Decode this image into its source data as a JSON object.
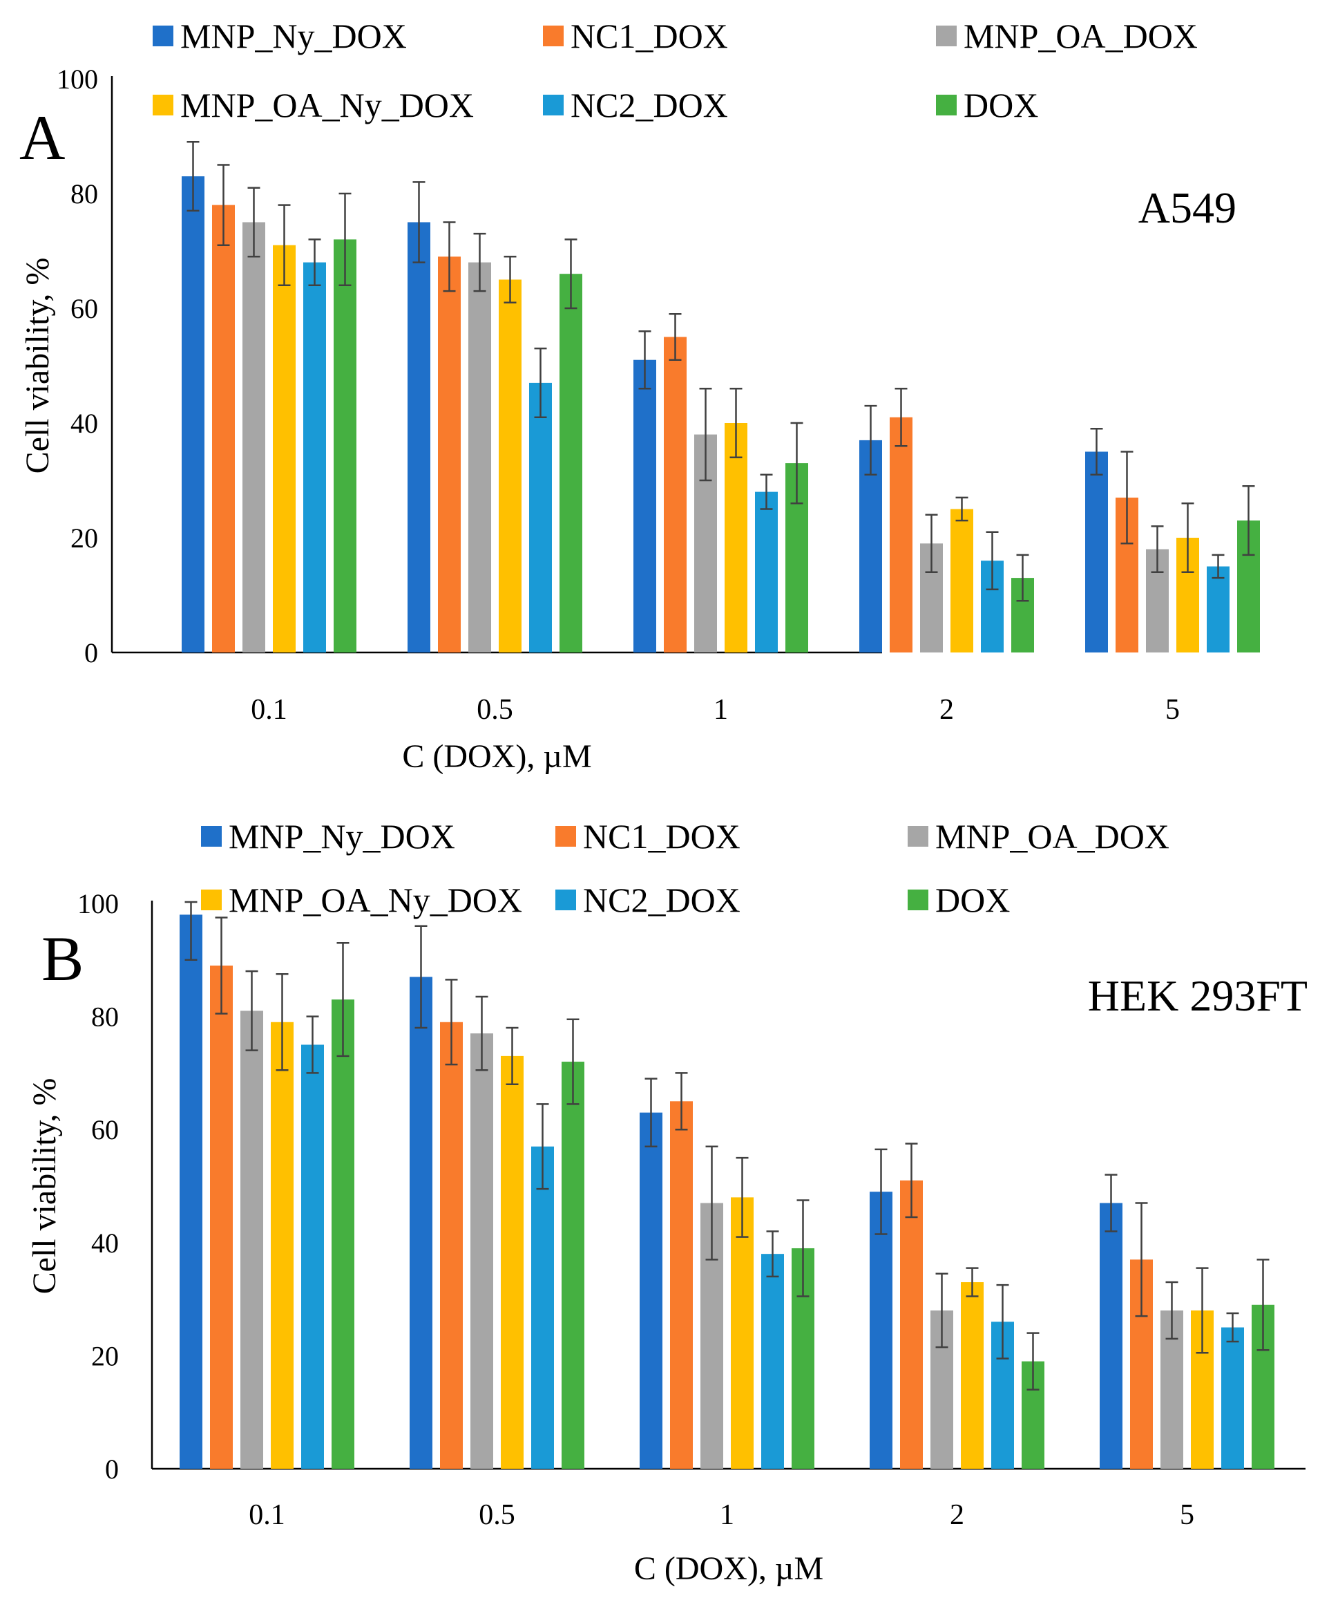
{
  "colors": {
    "MNP_Ny_DOX": "#1f70c9",
    "NC1_DOX": "#f97b2c",
    "MNP_OA_DOX": "#a6a6a6",
    "MNP_OA_Ny_DOX": "#ffc000",
    "NC2_DOX": "#1a9ad6",
    "DOX": "#45b041"
  },
  "chart_data": [
    {
      "type": "bar",
      "panel_label": "A",
      "annotation": "A549",
      "title": "",
      "xlabel": "C (DOX), µM",
      "ylabel": "Cell viability, %",
      "ylim": [
        0,
        100
      ],
      "yticks": [
        "0",
        "20",
        "40",
        "60",
        "80",
        "100"
      ],
      "legend_position": "top",
      "categories": [
        "0.1",
        "0.5",
        "1",
        "2",
        "5"
      ],
      "series": [
        {
          "name": "MNP_Ny_DOX",
          "values": [
            83,
            75,
            51,
            37,
            35
          ],
          "errors": [
            6,
            7,
            5,
            6,
            4
          ]
        },
        {
          "name": "NC1_DOX",
          "values": [
            78,
            69,
            55,
            41,
            27
          ],
          "errors": [
            7,
            6,
            4,
            5,
            8
          ]
        },
        {
          "name": "MNP_OA_DOX",
          "values": [
            75,
            68,
            38,
            19,
            18
          ],
          "errors": [
            6,
            5,
            8,
            5,
            4
          ]
        },
        {
          "name": "MNP_OA_Ny_DOX",
          "values": [
            71,
            65,
            40,
            25,
            20
          ],
          "errors": [
            7,
            4,
            6,
            2,
            6
          ]
        },
        {
          "name": "NC2_DOX",
          "values": [
            68,
            47,
            28,
            16,
            15
          ],
          "errors": [
            4,
            6,
            3,
            5,
            2
          ]
        },
        {
          "name": "DOX",
          "values": [
            72,
            66,
            33,
            13,
            23
          ],
          "errors": [
            8,
            6,
            7,
            4,
            6
          ]
        }
      ]
    },
    {
      "type": "bar",
      "panel_label": "B",
      "annotation": "HEK 293FT",
      "title": "",
      "xlabel": "C (DOX), µM",
      "ylabel": "Cell viability, %",
      "ylim": [
        0,
        100
      ],
      "yticks": [
        "0",
        "20",
        "40",
        "60",
        "80",
        "100"
      ],
      "legend_position": "top",
      "categories": [
        "0.1",
        "0.5",
        "1",
        "2",
        "5"
      ],
      "series": [
        {
          "name": "MNP_Ny_DOX",
          "values": [
            98,
            87,
            63,
            49,
            47
          ],
          "errors": [
            8,
            9,
            6,
            7.5,
            5
          ]
        },
        {
          "name": "NC1_DOX",
          "values": [
            89,
            79,
            65,
            51,
            37
          ],
          "errors": [
            8.5,
            7.5,
            5,
            6.5,
            10
          ]
        },
        {
          "name": "MNP_OA_DOX",
          "values": [
            81,
            77,
            47,
            28,
            28
          ],
          "errors": [
            7,
            6.5,
            10,
            6.5,
            5
          ]
        },
        {
          "name": "MNP_OA_Ny_DOX",
          "values": [
            79,
            73,
            48,
            33,
            28
          ],
          "errors": [
            8.5,
            5,
            7,
            2.5,
            7.5
          ]
        },
        {
          "name": "NC2_DOX",
          "values": [
            75,
            57,
            38,
            26,
            25
          ],
          "errors": [
            5,
            7.5,
            4,
            6.5,
            2.5
          ]
        },
        {
          "name": "DOX",
          "values": [
            83,
            72,
            39,
            19,
            29
          ],
          "errors": [
            10,
            7.5,
            8.5,
            5,
            8
          ]
        }
      ]
    }
  ]
}
